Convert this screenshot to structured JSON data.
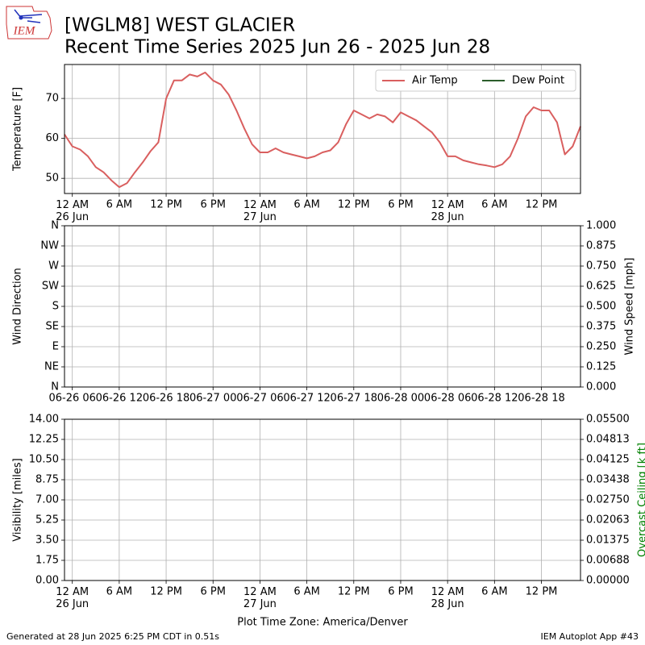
{
  "logo_text": "IEM",
  "footer_left": "Generated at 28 Jun 2025 6:25 PM CDT in 0.51s",
  "footer_right": "IEM Autoplot App #43",
  "chart_data": [
    {
      "type": "line",
      "title": "[WGLM8] WEST GLACIER",
      "subtitle": "Recent Time Series 2025 Jun 26 - 2025 Jun 28",
      "ylabel": "Temperature [F]",
      "grid": true,
      "legend": "upper right",
      "xlim": [
        "2025-06-25T23:00",
        "2025-06-28T17:00"
      ],
      "xticks": [
        {
          "value": "2025-06-26T00:00",
          "label": "12 AM\n26 Jun"
        },
        {
          "value": "2025-06-26T06:00",
          "label": "6 AM"
        },
        {
          "value": "2025-06-26T12:00",
          "label": "12 PM"
        },
        {
          "value": "2025-06-26T18:00",
          "label": "6 PM"
        },
        {
          "value": "2025-06-27T00:00",
          "label": "12 AM\n27 Jun"
        },
        {
          "value": "2025-06-27T06:00",
          "label": "6 AM"
        },
        {
          "value": "2025-06-27T12:00",
          "label": "12 PM"
        },
        {
          "value": "2025-06-27T18:00",
          "label": "6 PM"
        },
        {
          "value": "2025-06-28T00:00",
          "label": "12 AM\n28 Jun"
        },
        {
          "value": "2025-06-28T06:00",
          "label": "6 AM"
        },
        {
          "value": "2025-06-28T12:00",
          "label": "12 PM"
        }
      ],
      "ylim": [
        46.2,
        78.5
      ],
      "yticks": [
        50,
        60,
        70
      ],
      "x": [
        "2025-06-25T23:00",
        "2025-06-26T00:00",
        "2025-06-26T01:00",
        "2025-06-26T02:00",
        "2025-06-26T03:00",
        "2025-06-26T04:00",
        "2025-06-26T05:00",
        "2025-06-26T06:00",
        "2025-06-26T07:00",
        "2025-06-26T08:00",
        "2025-06-26T09:00",
        "2025-06-26T10:00",
        "2025-06-26T11:00",
        "2025-06-26T12:00",
        "2025-06-26T13:00",
        "2025-06-26T14:00",
        "2025-06-26T15:00",
        "2025-06-26T16:00",
        "2025-06-26T17:00",
        "2025-06-26T18:00",
        "2025-06-26T19:00",
        "2025-06-26T20:00",
        "2025-06-26T21:00",
        "2025-06-26T22:00",
        "2025-06-26T23:00",
        "2025-06-27T00:00",
        "2025-06-27T01:00",
        "2025-06-27T02:00",
        "2025-06-27T03:00",
        "2025-06-27T04:00",
        "2025-06-27T05:00",
        "2025-06-27T06:00",
        "2025-06-27T07:00",
        "2025-06-27T08:00",
        "2025-06-27T09:00",
        "2025-06-27T10:00",
        "2025-06-27T11:00",
        "2025-06-27T12:00",
        "2025-06-27T13:00",
        "2025-06-27T14:00",
        "2025-06-27T15:00",
        "2025-06-27T16:00",
        "2025-06-27T17:00",
        "2025-06-27T18:00",
        "2025-06-27T19:00",
        "2025-06-27T20:00",
        "2025-06-27T21:00",
        "2025-06-27T22:00",
        "2025-06-27T23:00",
        "2025-06-28T00:00",
        "2025-06-28T01:00",
        "2025-06-28T02:00",
        "2025-06-28T03:00",
        "2025-06-28T04:00",
        "2025-06-28T05:00",
        "2025-06-28T06:00",
        "2025-06-28T07:00",
        "2025-06-28T08:00",
        "2025-06-28T09:00",
        "2025-06-28T10:00",
        "2025-06-28T11:00",
        "2025-06-28T12:00",
        "2025-06-28T13:00",
        "2025-06-28T14:00",
        "2025-06-28T15:00",
        "2025-06-28T16:00",
        "2025-06-28T17:00"
      ],
      "series": [
        {
          "name": "Air Temp",
          "color": "#d95f5f",
          "values": [
            61,
            58,
            57.2,
            55.5,
            52.8,
            51.5,
            49.5,
            47.8,
            48.8,
            51.5,
            54,
            56.8,
            59,
            70,
            74.5,
            74.5,
            76,
            75.5,
            76.5,
            74.5,
            73.5,
            71,
            67,
            62.5,
            58.5,
            56.5,
            56.5,
            57.5,
            56.5,
            56,
            55.5,
            55,
            55.5,
            56.5,
            57,
            59,
            63.5,
            67,
            66,
            65,
            66,
            65.5,
            64,
            66.5,
            65.5,
            64.5,
            63,
            61.5,
            59,
            55.5,
            55.5,
            54.5,
            54,
            53.5,
            53.2,
            52.8,
            53.5,
            55.5,
            60,
            65.5,
            67.8,
            67,
            67,
            64,
            56,
            58,
            63
          ]
        },
        {
          "name": "Dew Point",
          "color": "#2b5e2b",
          "values": [
            null,
            null,
            null,
            null,
            null,
            null,
            null,
            null,
            null,
            null,
            null,
            null,
            null,
            null,
            null,
            null,
            null,
            null,
            null,
            null,
            null,
            null,
            null,
            null,
            null,
            null,
            null,
            null,
            null,
            null,
            null,
            null,
            null,
            null,
            null,
            null,
            null,
            null,
            null,
            null,
            null,
            null,
            null,
            null,
            null,
            null,
            null,
            null,
            null,
            null,
            null,
            null,
            null,
            null,
            null,
            null,
            null,
            null,
            null,
            null,
            null,
            null,
            null,
            null,
            null,
            null,
            null
          ]
        }
      ]
    },
    {
      "type": "line",
      "ylabel": "Wind Direction",
      "y2label": "Wind Speed [mph]",
      "grid": true,
      "xlim": [
        "2025-06-26T05:00",
        "2025-06-28T23:00"
      ],
      "xticks": [
        {
          "value": "2025-06-26T06:00",
          "label": "06-26 06"
        },
        {
          "value": "2025-06-26T12:00",
          "label": "06-26 12"
        },
        {
          "value": "2025-06-26T18:00",
          "label": "06-26 18"
        },
        {
          "value": "2025-06-27T00:00",
          "label": "06-27 00"
        },
        {
          "value": "2025-06-27T06:00",
          "label": "06-27 06"
        },
        {
          "value": "2025-06-27T12:00",
          "label": "06-27 12"
        },
        {
          "value": "2025-06-27T18:00",
          "label": "06-27 18"
        },
        {
          "value": "2025-06-28T00:00",
          "label": "06-28 00"
        },
        {
          "value": "2025-06-28T06:00",
          "label": "06-28 06"
        },
        {
          "value": "2025-06-28T12:00",
          "label": "06-28 12"
        },
        {
          "value": "2025-06-28T18:00",
          "label": "06-28 18"
        }
      ],
      "ylim": [
        0,
        360
      ],
      "yticks": [
        {
          "value": 0,
          "label": "N"
        },
        {
          "value": 45,
          "label": "NE"
        },
        {
          "value": 90,
          "label": "E"
        },
        {
          "value": 135,
          "label": "SE"
        },
        {
          "value": 180,
          "label": "S"
        },
        {
          "value": 225,
          "label": "SW"
        },
        {
          "value": 270,
          "label": "W"
        },
        {
          "value": 315,
          "label": "NW"
        },
        {
          "value": 360,
          "label": "N"
        }
      ],
      "y2lim": [
        0,
        1
      ],
      "y2ticks": [
        {
          "value": 0,
          "label": "0.000"
        },
        {
          "value": 0.125,
          "label": "0.125"
        },
        {
          "value": 0.25,
          "label": "0.250"
        },
        {
          "value": 0.375,
          "label": "0.375"
        },
        {
          "value": 0.5,
          "label": "0.500"
        },
        {
          "value": 0.625,
          "label": "0.625"
        },
        {
          "value": 0.75,
          "label": "0.750"
        },
        {
          "value": 0.875,
          "label": "0.875"
        },
        {
          "value": 1,
          "label": "1.000"
        }
      ],
      "series": []
    },
    {
      "type": "line",
      "ylabel": "Visibility [miles]",
      "y2label": "Overcast Ceiling [k ft]",
      "y2label_color": "#008000",
      "xlabel": "Plot Time Zone: America/Denver",
      "grid": true,
      "xlim": [
        "2025-06-25T23:00",
        "2025-06-28T17:00"
      ],
      "xticks": [
        {
          "value": "2025-06-26T00:00",
          "label": "12 AM\n26 Jun"
        },
        {
          "value": "2025-06-26T06:00",
          "label": "6 AM"
        },
        {
          "value": "2025-06-26T12:00",
          "label": "12 PM"
        },
        {
          "value": "2025-06-26T18:00",
          "label": "6 PM"
        },
        {
          "value": "2025-06-27T00:00",
          "label": "12 AM\n27 Jun"
        },
        {
          "value": "2025-06-27T06:00",
          "label": "6 AM"
        },
        {
          "value": "2025-06-27T12:00",
          "label": "12 PM"
        },
        {
          "value": "2025-06-27T18:00",
          "label": "6 PM"
        },
        {
          "value": "2025-06-28T00:00",
          "label": "12 AM\n28 Jun"
        },
        {
          "value": "2025-06-28T06:00",
          "label": "6 AM"
        },
        {
          "value": "2025-06-28T12:00",
          "label": "12 PM"
        }
      ],
      "ylim": [
        0,
        14
      ],
      "yticks": [
        {
          "value": 0,
          "label": "0.00"
        },
        {
          "value": 1.75,
          "label": "1.75"
        },
        {
          "value": 3.5,
          "label": "3.50"
        },
        {
          "value": 5.25,
          "label": "5.25"
        },
        {
          "value": 7,
          "label": "7.00"
        },
        {
          "value": 8.75,
          "label": "8.75"
        },
        {
          "value": 10.5,
          "label": "10.50"
        },
        {
          "value": 12.25,
          "label": "12.25"
        },
        {
          "value": 14,
          "label": "14.00"
        }
      ],
      "y2lim": [
        0,
        0.055
      ],
      "y2ticks": [
        {
          "value": 0,
          "label": "0.00000"
        },
        {
          "value": 0.006875,
          "label": "0.00688"
        },
        {
          "value": 0.01375,
          "label": "0.01375"
        },
        {
          "value": 0.020625,
          "label": "0.02063"
        },
        {
          "value": 0.0275,
          "label": "0.02750"
        },
        {
          "value": 0.034375,
          "label": "0.03438"
        },
        {
          "value": 0.04125,
          "label": "0.04125"
        },
        {
          "value": 0.048125,
          "label": "0.04813"
        },
        {
          "value": 0.055,
          "label": "0.05500"
        }
      ],
      "series": []
    }
  ]
}
